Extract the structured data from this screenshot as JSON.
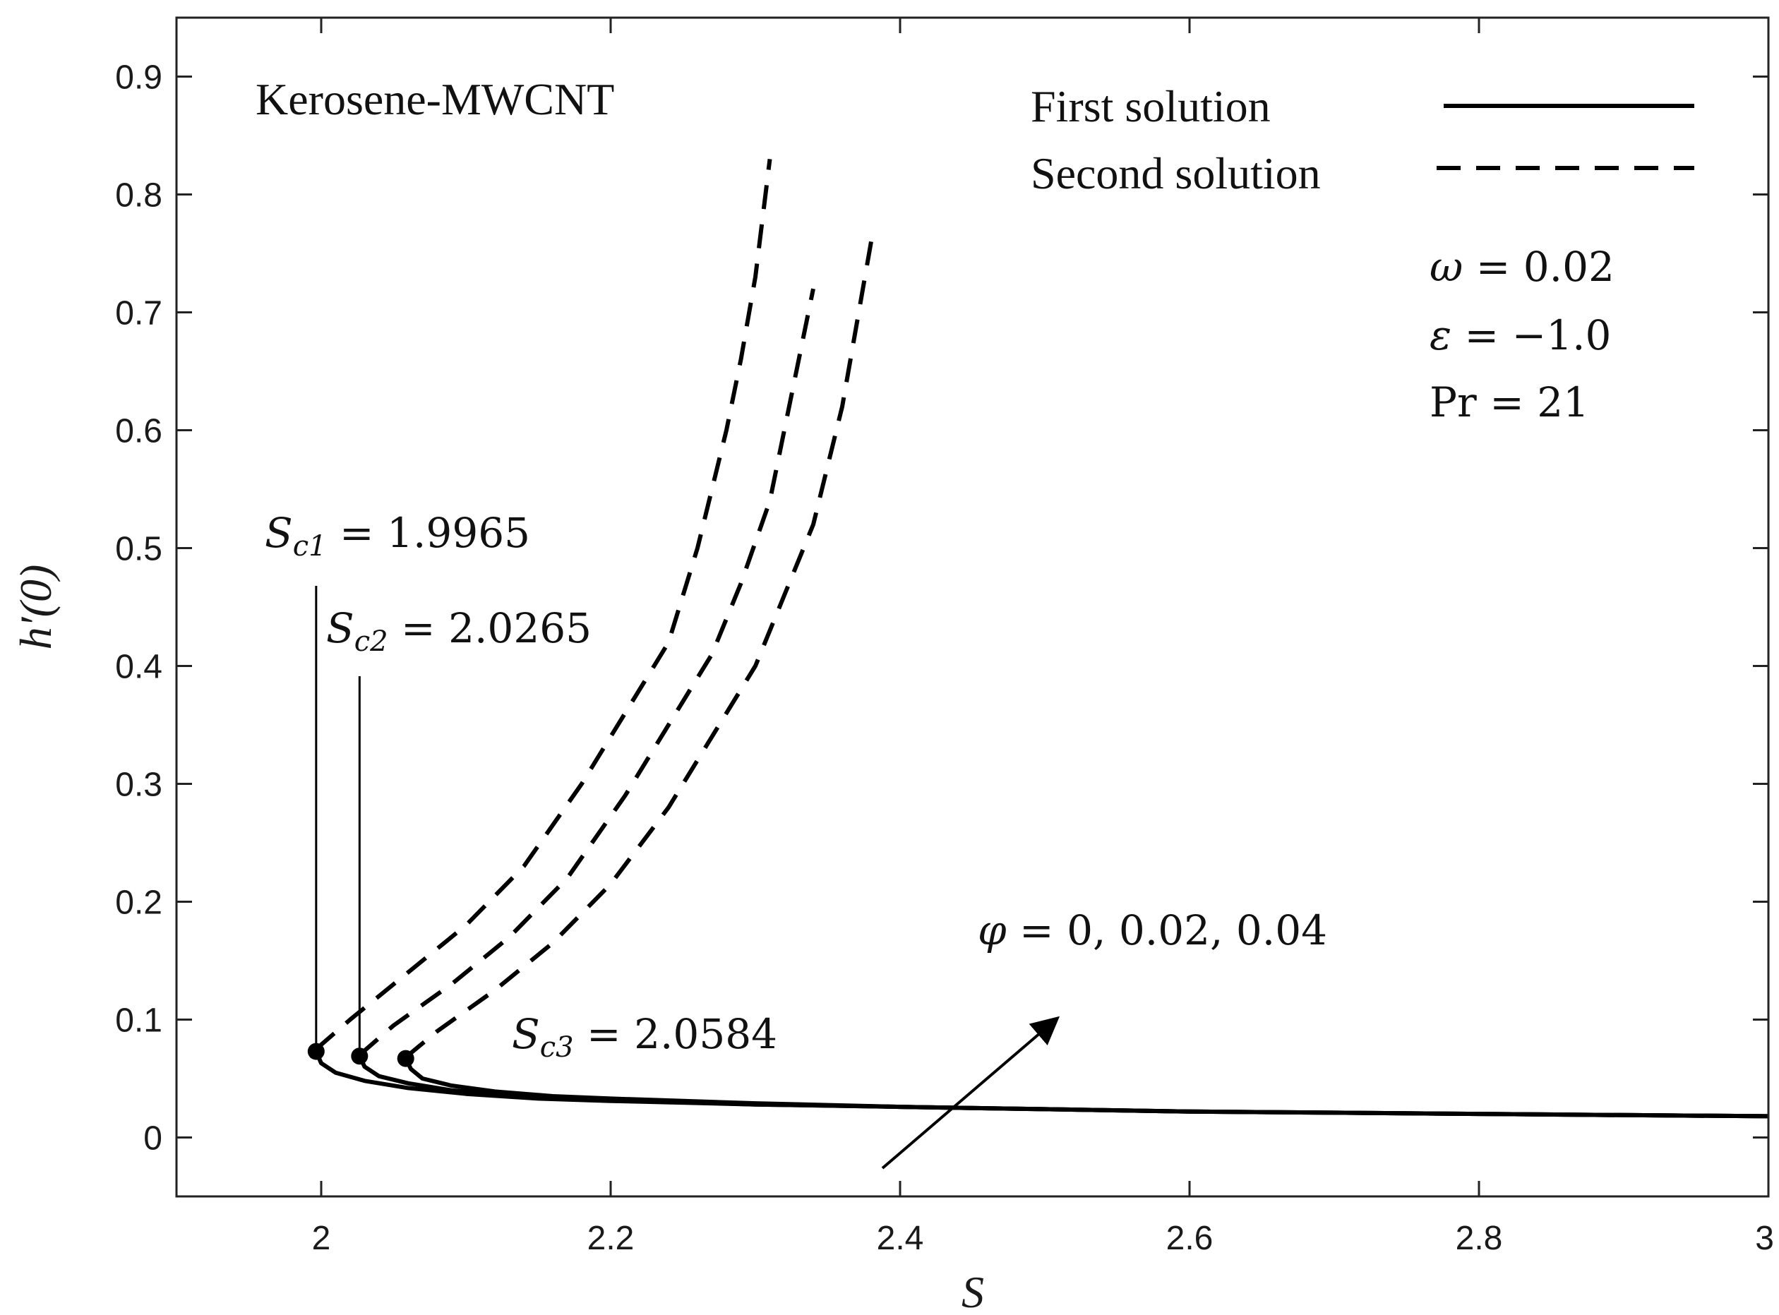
{
  "chart_data": {
    "type": "line",
    "title": "",
    "xlabel": "S",
    "ylabel": "h′(0)",
    "xlim": [
      1.9,
      3.0
    ],
    "ylim": [
      -0.05,
      0.95
    ],
    "grid": false,
    "x_ticks": [
      2,
      2.2,
      2.4,
      2.6,
      2.8,
      3
    ],
    "x_tick_labels": [
      "2",
      "2.2",
      "2.4",
      "2.6",
      "2.8",
      "3"
    ],
    "y_ticks": [
      0,
      0.1,
      0.2,
      0.3,
      0.4,
      0.5,
      0.6,
      0.7,
      0.8,
      0.9
    ],
    "y_tick_labels": [
      "0",
      "0.1",
      "0.2",
      "0.3",
      "0.4",
      "0.5",
      "0.6",
      "0.7",
      "0.8",
      "0.9"
    ],
    "legend": {
      "position": "top-right",
      "entries": [
        {
          "label": "First solution",
          "style": "solid"
        },
        {
          "label": "Second solution",
          "style": "dashed"
        }
      ]
    },
    "fluid_label": "Kerosene-MWCNT",
    "parameters": [
      {
        "symbol": "ω",
        "value": "0.02"
      },
      {
        "symbol": "ε",
        "value": "−1.0"
      },
      {
        "symbol": "Pr",
        "value": "21"
      }
    ],
    "annotations": {
      "arrow_label": {
        "symbol": "φ",
        "text": " = 0, 0.02, 0.04"
      },
      "critical_points": [
        {
          "sub": "c1",
          "value": "1.9965",
          "x": 1.9965,
          "y": 0.073
        },
        {
          "sub": "c2",
          "value": "2.0265",
          "x": 2.0265,
          "y": 0.069
        },
        {
          "sub": "c3",
          "value": "2.0584",
          "x": 2.0584,
          "y": 0.067
        }
      ]
    },
    "series": [
      {
        "name": "First solution, φ = 0",
        "style": "solid",
        "x": [
          1.9965,
          2.0,
          2.01,
          2.03,
          2.06,
          2.1,
          2.15,
          2.2,
          2.3,
          2.4,
          2.5,
          2.6,
          2.7,
          2.8,
          2.9,
          3.0
        ],
        "y": [
          0.073,
          0.063,
          0.055,
          0.048,
          0.042,
          0.037,
          0.033,
          0.031,
          0.028,
          0.026,
          0.024,
          0.022,
          0.021,
          0.02,
          0.019,
          0.018
        ]
      },
      {
        "name": "First solution, φ = 0.02",
        "style": "solid",
        "x": [
          2.0265,
          2.03,
          2.04,
          2.06,
          2.09,
          2.13,
          2.18,
          2.25,
          2.3,
          2.4,
          2.5,
          2.6,
          2.7,
          2.8,
          2.9,
          3.0
        ],
        "y": [
          0.069,
          0.06,
          0.052,
          0.046,
          0.04,
          0.036,
          0.033,
          0.03,
          0.028,
          0.026,
          0.024,
          0.022,
          0.021,
          0.02,
          0.019,
          0.018
        ]
      },
      {
        "name": "First solution, φ = 0.04",
        "style": "solid",
        "x": [
          2.0584,
          2.062,
          2.07,
          2.09,
          2.12,
          2.16,
          2.2,
          2.3,
          2.4,
          2.5,
          2.6,
          2.7,
          2.8,
          2.9,
          3.0
        ],
        "y": [
          0.067,
          0.058,
          0.05,
          0.044,
          0.039,
          0.035,
          0.033,
          0.029,
          0.026,
          0.024,
          0.022,
          0.021,
          0.02,
          0.019,
          0.018
        ]
      },
      {
        "name": "Second solution, φ = 0",
        "style": "dashed",
        "x": [
          1.9965,
          2.02,
          2.06,
          2.1,
          2.14,
          2.18,
          2.21,
          2.24,
          2.26,
          2.27,
          2.28,
          2.29,
          2.3,
          2.31
        ],
        "y": [
          0.075,
          0.1,
          0.14,
          0.18,
          0.23,
          0.3,
          0.36,
          0.42,
          0.5,
          0.55,
          0.6,
          0.66,
          0.73,
          0.83
        ]
      },
      {
        "name": "Second solution, φ = 0.02",
        "style": "dashed",
        "x": [
          2.0265,
          2.05,
          2.09,
          2.13,
          2.17,
          2.21,
          2.24,
          2.27,
          2.29,
          2.31,
          2.32,
          2.33,
          2.34
        ],
        "y": [
          0.07,
          0.095,
          0.13,
          0.17,
          0.22,
          0.29,
          0.35,
          0.41,
          0.47,
          0.54,
          0.6,
          0.66,
          0.72
        ]
      },
      {
        "name": "Second solution, φ = 0.04",
        "style": "dashed",
        "x": [
          2.0584,
          2.08,
          2.12,
          2.16,
          2.2,
          2.24,
          2.27,
          2.3,
          2.32,
          2.34,
          2.35,
          2.36,
          2.37,
          2.38
        ],
        "y": [
          0.068,
          0.09,
          0.125,
          0.165,
          0.215,
          0.28,
          0.34,
          0.4,
          0.46,
          0.52,
          0.57,
          0.62,
          0.69,
          0.76
        ]
      }
    ]
  }
}
